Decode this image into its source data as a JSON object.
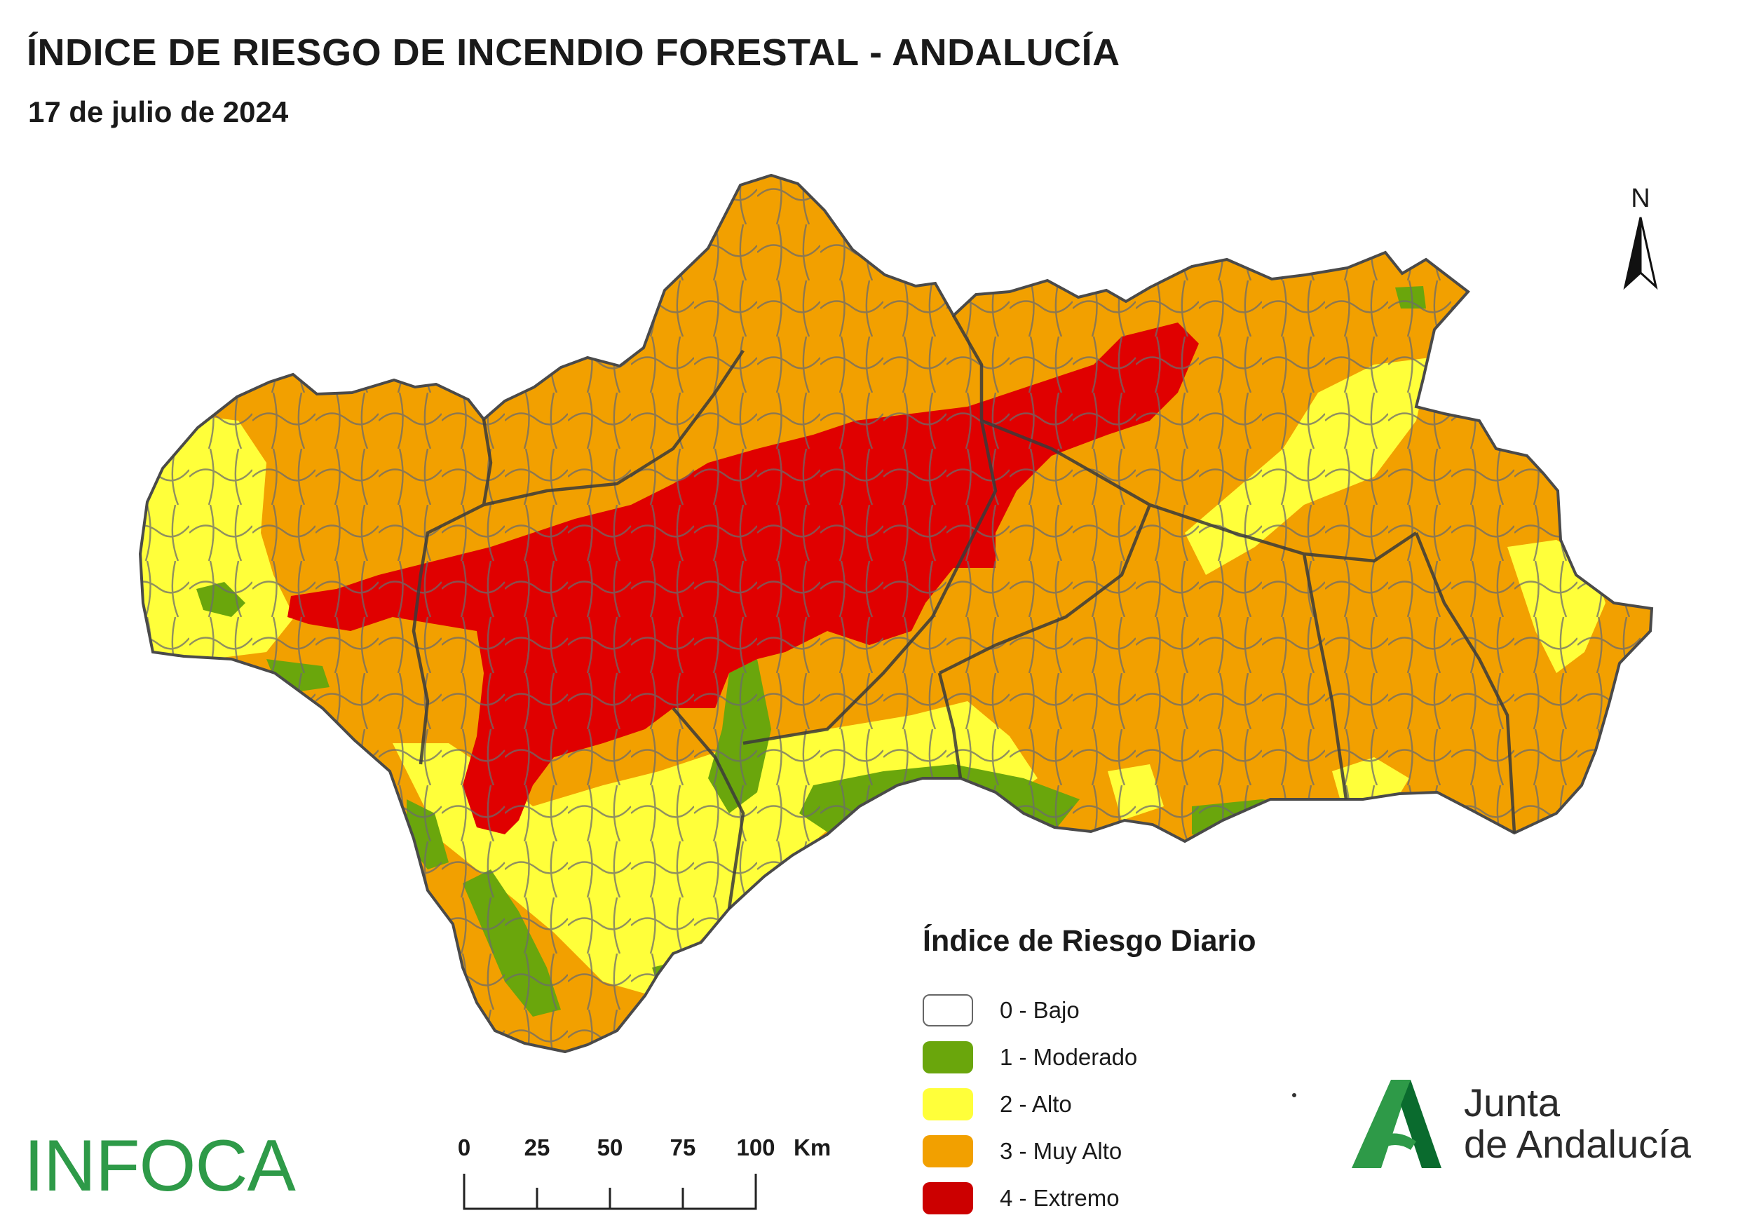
{
  "header": {
    "title": "ÍNDICE DE RIESGO DE INCENDIO FORESTAL - ANDALUCÍA",
    "date": "17 de julio de 2024"
  },
  "north_arrow": {
    "label": "N"
  },
  "legend": {
    "title": "Índice de Riesgo Diario",
    "items": [
      {
        "label": "0 - Bajo",
        "color": "#ffffff"
      },
      {
        "label": "1 - Moderado",
        "color": "#6aa60c"
      },
      {
        "label": "2 - Alto",
        "color": "#ffff3a"
      },
      {
        "label": "3 - Muy Alto",
        "color": "#f2a000"
      },
      {
        "label": "4 - Extremo",
        "color": "#e00000"
      }
    ]
  },
  "scale_bar": {
    "ticks": [
      "0",
      "25",
      "50",
      "75",
      "100"
    ],
    "unit": "Km"
  },
  "logos": {
    "infoca": "INFOCA",
    "junta_line1": "Junta",
    "junta_line2": "de Andalucía"
  }
}
